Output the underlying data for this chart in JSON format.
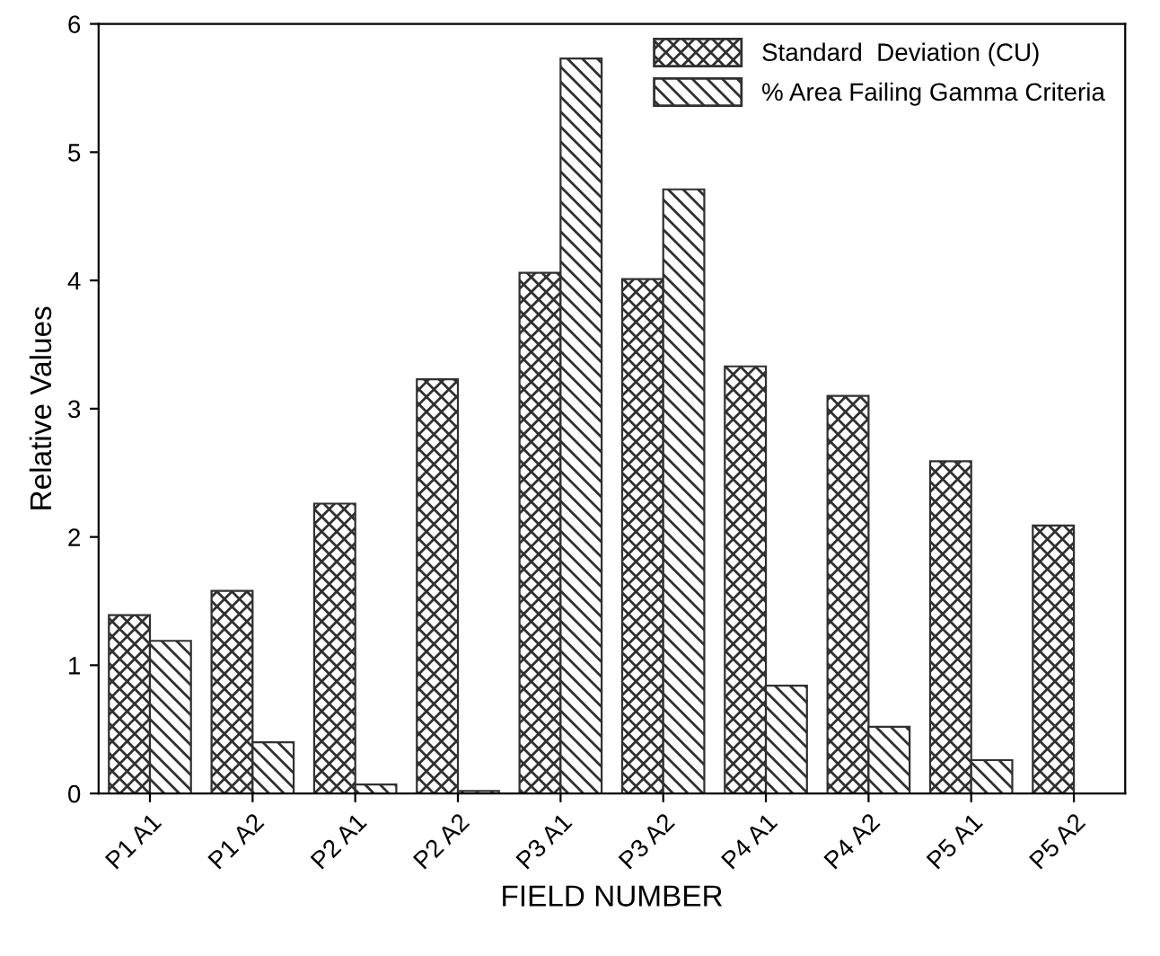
{
  "chart_data": {
    "type": "bar",
    "xlabel": "FIELD NUMBER",
    "ylabel": "Relative Values",
    "categories": [
      "P1 A1",
      "P1 A2",
      "P2 A1",
      "P2 A2",
      "P3 A1",
      "P3 A2",
      "P4 A1",
      "P4 A2",
      "P5 A1",
      "P5 A2"
    ],
    "series": [
      {
        "name": "Standard  Deviation (CU)",
        "color": "#303030",
        "values": [
          1.39,
          1.58,
          2.26,
          3.23,
          4.06,
          4.01,
          3.33,
          3.1,
          2.59,
          2.09
        ]
      },
      {
        "name": "% Area Failing Gamma Criteria",
        "color": "#303030",
        "values": [
          1.19,
          0.4,
          0.07,
          0.02,
          5.73,
          4.71,
          0.84,
          0.52,
          0.26,
          null
        ]
      }
    ],
    "ylim": [
      0,
      6
    ],
    "yticks": [
      0,
      1,
      2,
      3,
      4,
      5,
      6
    ],
    "grid": false,
    "legend": "top right"
  }
}
